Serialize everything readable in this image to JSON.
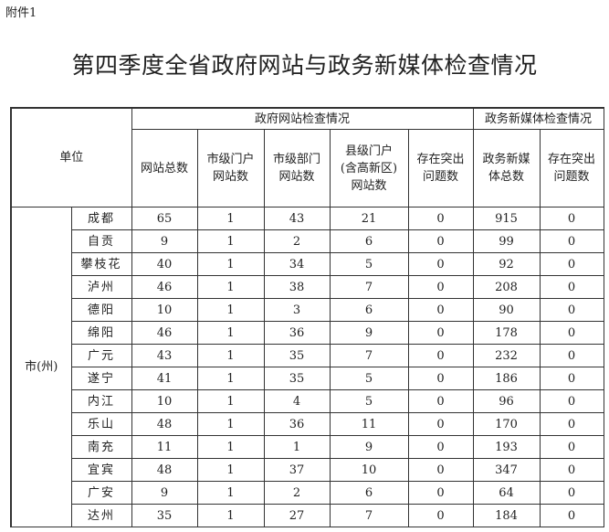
{
  "attachment_label": "附件1",
  "title": "第四季度全省政府网站与政务新媒体检查情况",
  "table": {
    "unit_header": "单位",
    "group_gov_sites": "政府网站检查情况",
    "group_new_media": "政务新媒体检查情况",
    "columns": [
      "网站总数",
      "市级门户网站数",
      "市级部门网站数",
      "县级门户(含高新区)网站数",
      "存在突出问题数",
      "政务新媒体总数",
      "存在突出问题数"
    ],
    "columns_lines": [
      [
        "网站总数"
      ],
      [
        "市级门户",
        "网站数"
      ],
      [
        "市级部门",
        "网站数"
      ],
      [
        "县级门户",
        "(含高新区)",
        "网站数"
      ],
      [
        "存在突出",
        "问题数"
      ],
      [
        "政务新媒",
        "体总数"
      ],
      [
        "存在突出",
        "问题数"
      ]
    ],
    "group_label": "市(州)",
    "rows": [
      {
        "name": "成都",
        "values": [
          "65",
          "1",
          "43",
          "21",
          "0",
          "915",
          "0"
        ]
      },
      {
        "name": "自贡",
        "values": [
          "9",
          "1",
          "2",
          "6",
          "0",
          "99",
          "0"
        ]
      },
      {
        "name": "攀枝花",
        "values": [
          "40",
          "1",
          "34",
          "5",
          "0",
          "92",
          "0"
        ]
      },
      {
        "name": "泸州",
        "values": [
          "46",
          "1",
          "38",
          "7",
          "0",
          "208",
          "0"
        ]
      },
      {
        "name": "德阳",
        "values": [
          "10",
          "1",
          "3",
          "6",
          "0",
          "90",
          "0"
        ]
      },
      {
        "name": "绵阳",
        "values": [
          "46",
          "1",
          "36",
          "9",
          "0",
          "178",
          "0"
        ]
      },
      {
        "name": "广元",
        "values": [
          "43",
          "1",
          "35",
          "7",
          "0",
          "232",
          "0"
        ]
      },
      {
        "name": "遂宁",
        "values": [
          "41",
          "1",
          "35",
          "5",
          "0",
          "186",
          "0"
        ]
      },
      {
        "name": "内江",
        "values": [
          "10",
          "1",
          "4",
          "5",
          "0",
          "96",
          "0"
        ]
      },
      {
        "name": "乐山",
        "values": [
          "48",
          "1",
          "36",
          "11",
          "0",
          "170",
          "0"
        ]
      },
      {
        "name": "南充",
        "values": [
          "11",
          "1",
          "1",
          "9",
          "0",
          "193",
          "0"
        ]
      },
      {
        "name": "宜宾",
        "values": [
          "48",
          "1",
          "37",
          "10",
          "0",
          "347",
          "0"
        ]
      },
      {
        "name": "广安",
        "values": [
          "9",
          "1",
          "2",
          "6",
          "0",
          "64",
          "0"
        ]
      },
      {
        "name": "达州",
        "values": [
          "35",
          "1",
          "27",
          "7",
          "0",
          "184",
          "0"
        ]
      }
    ]
  }
}
